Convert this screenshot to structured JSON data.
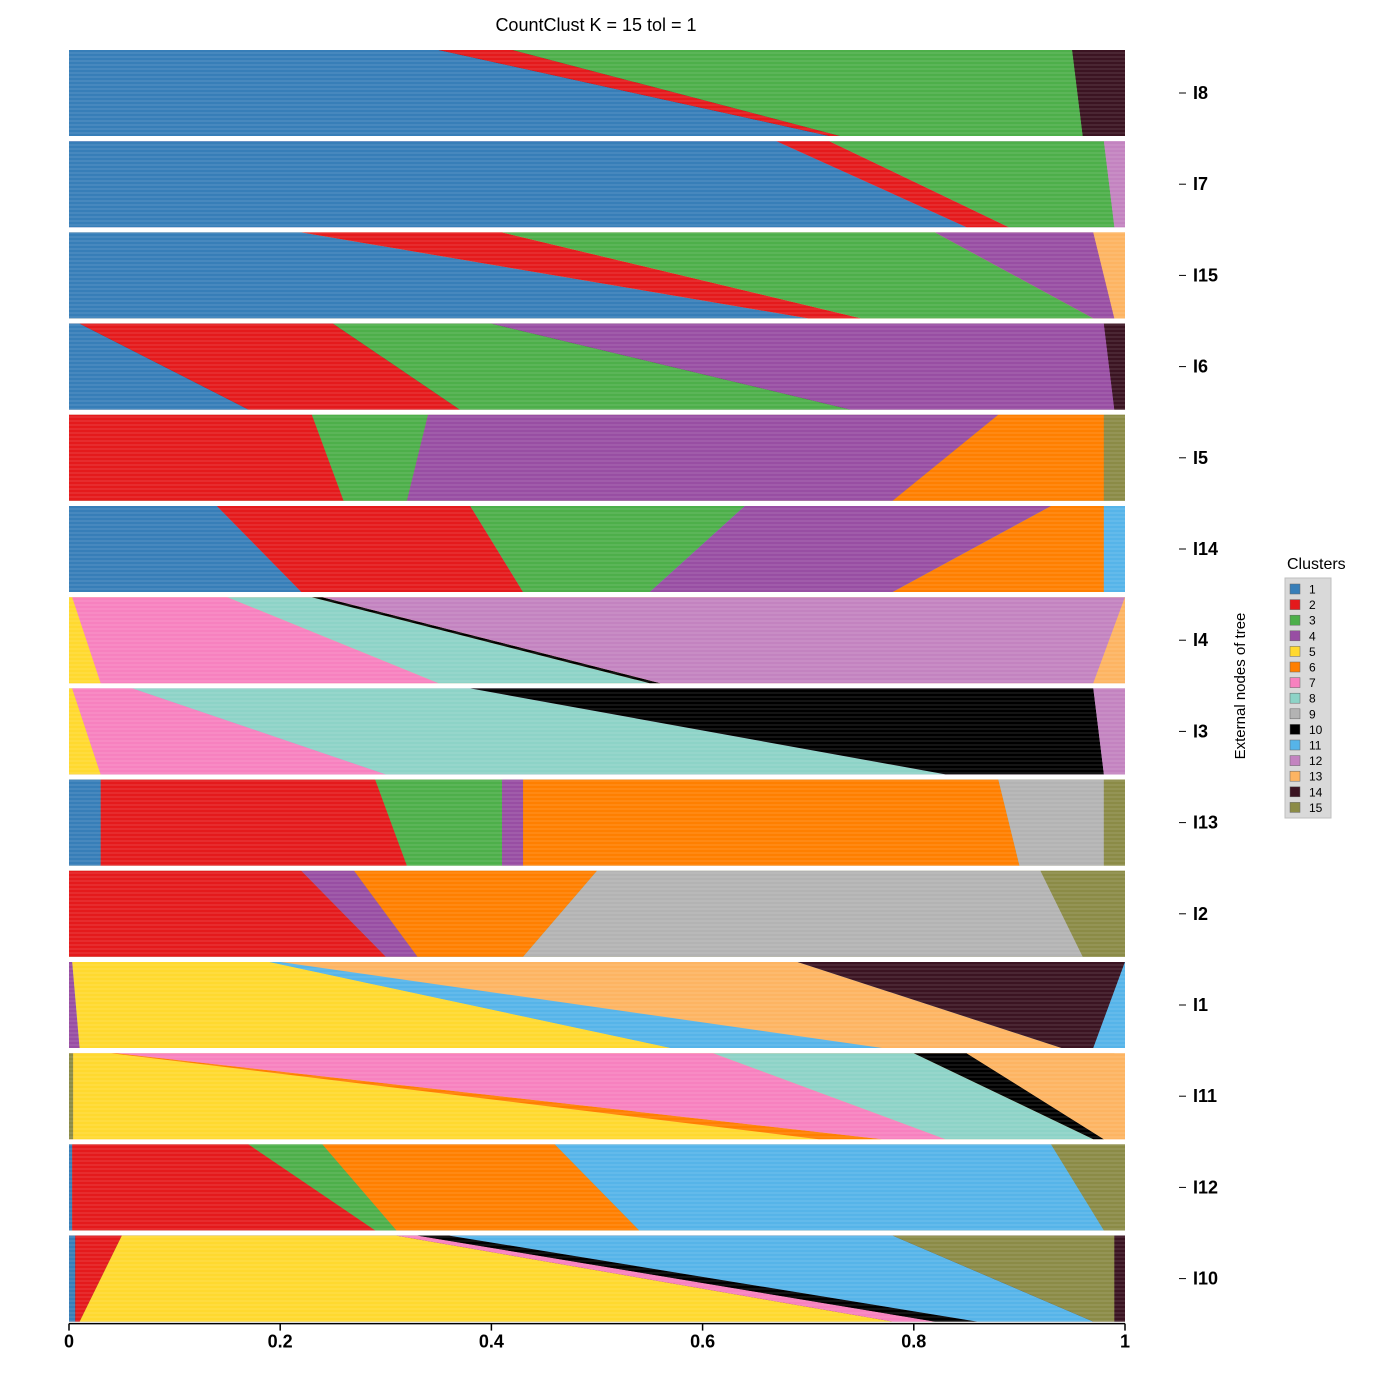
{
  "chart_data": {
    "type": "stacked-bar",
    "title": "CountClust K =  15 tol =  1",
    "orientation": "horizontal",
    "xlim": [
      0,
      1
    ],
    "x_ticks": [
      {
        "value": 0,
        "label": "0"
      },
      {
        "value": 0.2,
        "label": "0.2"
      },
      {
        "value": 0.4,
        "label": "0.4"
      },
      {
        "value": 0.6,
        "label": "0.6"
      },
      {
        "value": 0.8,
        "label": "0.8"
      },
      {
        "value": 1,
        "label": "1"
      }
    ],
    "ylabel": "External nodes of tree",
    "legend": {
      "title": "Clusters",
      "position": "right",
      "items": [
        {
          "label": "1",
          "color": "#377EB8"
        },
        {
          "label": "2",
          "color": "#E41A1C"
        },
        {
          "label": "3",
          "color": "#4DAF4A"
        },
        {
          "label": "4",
          "color": "#984EA3"
        },
        {
          "label": "5",
          "color": "#FFD92F"
        },
        {
          "label": "6",
          "color": "#FF7F00"
        },
        {
          "label": "7",
          "color": "#F781BF"
        },
        {
          "label": "8",
          "color": "#8DD3C7"
        },
        {
          "label": "9",
          "color": "#B3B3B3"
        },
        {
          "label": "10",
          "color": "#000000"
        },
        {
          "label": "11",
          "color": "#56B4E9"
        },
        {
          "label": "12",
          "color": "#C383C0"
        },
        {
          "label": "13",
          "color": "#FDB462"
        },
        {
          "label": "14",
          "color": "#3B1422"
        },
        {
          "label": "15",
          "color": "#8B8B46"
        }
      ]
    },
    "panels": [
      {
        "label": "I8",
        "segments": [
          {
            "cluster": "1",
            "top": 0.35,
            "bottom": 0.72
          },
          {
            "cluster": "2",
            "top": 0.42,
            "bottom": 0.73
          },
          {
            "cluster": "3",
            "top": 0.95,
            "bottom": 0.96
          },
          {
            "cluster": "14",
            "top": 1.0,
            "bottom": 1.0
          }
        ]
      },
      {
        "label": "I7",
        "segments": [
          {
            "cluster": "1",
            "top": 0.67,
            "bottom": 0.85
          },
          {
            "cluster": "2",
            "top": 0.72,
            "bottom": 0.89
          },
          {
            "cluster": "3",
            "top": 0.98,
            "bottom": 0.99
          },
          {
            "cluster": "12",
            "top": 1.0,
            "bottom": 1.0
          }
        ]
      },
      {
        "label": "I15",
        "segments": [
          {
            "cluster": "1",
            "top": 0.22,
            "bottom": 0.7
          },
          {
            "cluster": "2",
            "top": 0.41,
            "bottom": 0.75
          },
          {
            "cluster": "3",
            "top": 0.82,
            "bottom": 0.97
          },
          {
            "cluster": "4",
            "top": 0.97,
            "bottom": 0.99
          },
          {
            "cluster": "13",
            "top": 1.0,
            "bottom": 1.0
          }
        ]
      },
      {
        "label": "I6",
        "segments": [
          {
            "cluster": "1",
            "top": 0.01,
            "bottom": 0.17
          },
          {
            "cluster": "2",
            "top": 0.25,
            "bottom": 0.37
          },
          {
            "cluster": "3",
            "top": 0.4,
            "bottom": 0.74
          },
          {
            "cluster": "4",
            "top": 0.98,
            "bottom": 0.99
          },
          {
            "cluster": "14",
            "top": 1.0,
            "bottom": 1.0
          }
        ]
      },
      {
        "label": "I5",
        "segments": [
          {
            "cluster": "2",
            "top": 0.23,
            "bottom": 0.26
          },
          {
            "cluster": "3",
            "top": 0.34,
            "bottom": 0.32
          },
          {
            "cluster": "4",
            "top": 0.88,
            "bottom": 0.78
          },
          {
            "cluster": "6",
            "top": 0.98,
            "bottom": 0.98
          },
          {
            "cluster": "15",
            "top": 1.0,
            "bottom": 1.0
          }
        ]
      },
      {
        "label": "I14",
        "segments": [
          {
            "cluster": "1",
            "top": 0.14,
            "bottom": 0.22
          },
          {
            "cluster": "2",
            "top": 0.38,
            "bottom": 0.43
          },
          {
            "cluster": "3",
            "top": 0.64,
            "bottom": 0.55
          },
          {
            "cluster": "4",
            "top": 0.93,
            "bottom": 0.78
          },
          {
            "cluster": "6",
            "top": 0.98,
            "bottom": 0.98
          },
          {
            "cluster": "11",
            "top": 1.0,
            "bottom": 1.0
          }
        ]
      },
      {
        "label": "I4",
        "segments": [
          {
            "cluster": "5",
            "top": 0.003,
            "bottom": 0.03
          },
          {
            "cluster": "7",
            "top": 0.15,
            "bottom": 0.35
          },
          {
            "cluster": "8",
            "top": 0.23,
            "bottom": 0.55
          },
          {
            "cluster": "10",
            "top": 0.24,
            "bottom": 0.56
          },
          {
            "cluster": "12",
            "top": 1.0,
            "bottom": 0.97
          },
          {
            "cluster": "13",
            "top": 1.0,
            "bottom": 1.0
          }
        ]
      },
      {
        "label": "I3",
        "segments": [
          {
            "cluster": "5",
            "top": 0.003,
            "bottom": 0.03
          },
          {
            "cluster": "7",
            "top": 0.06,
            "bottom": 0.3
          },
          {
            "cluster": "8",
            "top": 0.38,
            "bottom": 0.83
          },
          {
            "cluster": "10",
            "top": 0.97,
            "bottom": 0.98
          },
          {
            "cluster": "12",
            "top": 1.0,
            "bottom": 1.0
          }
        ]
      },
      {
        "label": "I13",
        "segments": [
          {
            "cluster": "1",
            "top": 0.03,
            "bottom": 0.03
          },
          {
            "cluster": "2",
            "top": 0.29,
            "bottom": 0.32
          },
          {
            "cluster": "3",
            "top": 0.41,
            "bottom": 0.41
          },
          {
            "cluster": "4",
            "top": 0.43,
            "bottom": 0.43
          },
          {
            "cluster": "6",
            "top": 0.88,
            "bottom": 0.9
          },
          {
            "cluster": "9",
            "top": 0.98,
            "bottom": 0.98
          },
          {
            "cluster": "15",
            "top": 1.0,
            "bottom": 1.0
          }
        ]
      },
      {
        "label": "I2",
        "segments": [
          {
            "cluster": "2",
            "top": 0.22,
            "bottom": 0.3
          },
          {
            "cluster": "4",
            "top": 0.27,
            "bottom": 0.33
          },
          {
            "cluster": "6",
            "top": 0.5,
            "bottom": 0.43
          },
          {
            "cluster": "9",
            "top": 0.92,
            "bottom": 0.96
          },
          {
            "cluster": "15",
            "top": 1.0,
            "bottom": 1.0
          }
        ]
      },
      {
        "label": "I1",
        "segments": [
          {
            "cluster": "4",
            "top": 0.003,
            "bottom": 0.01
          },
          {
            "cluster": "5",
            "top": 0.19,
            "bottom": 0.57
          },
          {
            "cluster": "11",
            "top": 0.2,
            "bottom": 0.77
          },
          {
            "cluster": "13",
            "top": 0.69,
            "bottom": 0.94
          },
          {
            "cluster": "14",
            "top": 1.0,
            "bottom": 0.97
          },
          {
            "cluster": "11",
            "top": 1.0,
            "bottom": 1.0
          }
        ]
      },
      {
        "label": "I11",
        "segments": [
          {
            "cluster": "15",
            "top": 0.004,
            "bottom": 0.004
          },
          {
            "cluster": "5",
            "top": 0.04,
            "bottom": 0.71
          },
          {
            "cluster": "6",
            "top": 0.045,
            "bottom": 0.77
          },
          {
            "cluster": "7",
            "top": 0.61,
            "bottom": 0.83
          },
          {
            "cluster": "8",
            "top": 0.8,
            "bottom": 0.97
          },
          {
            "cluster": "10",
            "top": 0.85,
            "bottom": 0.98
          },
          {
            "cluster": "13",
            "top": 0.99,
            "bottom": 1.0
          }
        ]
      },
      {
        "label": "I12",
        "segments": [
          {
            "cluster": "1",
            "top": 0.003,
            "bottom": 0.003
          },
          {
            "cluster": "2",
            "top": 0.17,
            "bottom": 0.29
          },
          {
            "cluster": "3",
            "top": 0.24,
            "bottom": 0.31
          },
          {
            "cluster": "6",
            "top": 0.46,
            "bottom": 0.54
          },
          {
            "cluster": "11",
            "top": 0.93,
            "bottom": 0.98
          },
          {
            "cluster": "15",
            "top": 1.0,
            "bottom": 1.0
          }
        ]
      },
      {
        "label": "I10",
        "segments": [
          {
            "cluster": "1",
            "top": 0.006,
            "bottom": 0.006
          },
          {
            "cluster": "2",
            "top": 0.05,
            "bottom": 0.01
          },
          {
            "cluster": "5",
            "top": 0.31,
            "bottom": 0.78
          },
          {
            "cluster": "7",
            "top": 0.33,
            "bottom": 0.82
          },
          {
            "cluster": "10",
            "top": 0.36,
            "bottom": 0.86
          },
          {
            "cluster": "11",
            "top": 0.78,
            "bottom": 0.97
          },
          {
            "cluster": "15",
            "top": 0.99,
            "bottom": 0.99
          },
          {
            "cluster": "14",
            "top": 1.0,
            "bottom": 1.0
          }
        ]
      }
    ]
  }
}
